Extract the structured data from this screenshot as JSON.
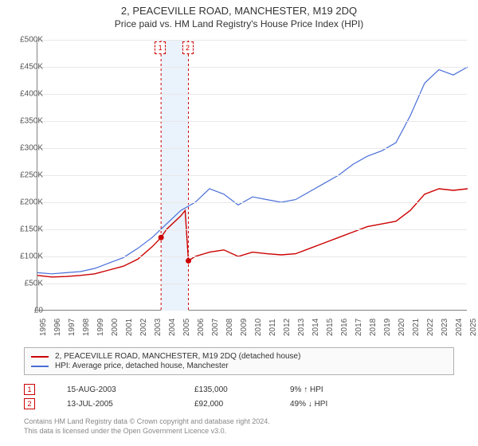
{
  "title": "2, PEACEVILLE ROAD, MANCHESTER, M19 2DQ",
  "subtitle": "Price paid vs. HM Land Registry's House Price Index (HPI)",
  "chart": {
    "type": "line",
    "background_color": "#ffffff",
    "grid_color": "#e8e8e8",
    "axis_color": "#808080",
    "ylim": [
      0,
      500000
    ],
    "ytick_step": 50000,
    "ylabel_prefix": "£",
    "ylabel_suffix": "K",
    "xlim": [
      1995,
      2025
    ],
    "xtick_step": 1,
    "label_fontsize": 10,
    "label_color": "#555555",
    "series": [
      {
        "name": "subject",
        "color": "#cc0000",
        "line_width": 1.4,
        "points": [
          [
            1995,
            65000
          ],
          [
            1996,
            62000
          ],
          [
            1997,
            63000
          ],
          [
            1998,
            65000
          ],
          [
            1999,
            68000
          ],
          [
            2000,
            75000
          ],
          [
            2001,
            82000
          ],
          [
            2002,
            95000
          ],
          [
            2003,
            118000
          ],
          [
            2003.62,
            135000
          ],
          [
            2004,
            150000
          ],
          [
            2005,
            175000
          ],
          [
            2005.3,
            185000
          ],
          [
            2005.53,
            92000
          ],
          [
            2006,
            100000
          ],
          [
            2007,
            108000
          ],
          [
            2008,
            112000
          ],
          [
            2009,
            100000
          ],
          [
            2010,
            108000
          ],
          [
            2011,
            105000
          ],
          [
            2012,
            103000
          ],
          [
            2013,
            105000
          ],
          [
            2014,
            115000
          ],
          [
            2015,
            125000
          ],
          [
            2016,
            135000
          ],
          [
            2017,
            145000
          ],
          [
            2018,
            155000
          ],
          [
            2019,
            160000
          ],
          [
            2020,
            165000
          ],
          [
            2021,
            185000
          ],
          [
            2022,
            215000
          ],
          [
            2023,
            225000
          ],
          [
            2024,
            222000
          ],
          [
            2025,
            225000
          ]
        ]
      },
      {
        "name": "hpi",
        "color": "#4a6fd8",
        "line_width": 1.2,
        "points": [
          [
            1995,
            70000
          ],
          [
            1996,
            68000
          ],
          [
            1997,
            70000
          ],
          [
            1998,
            72000
          ],
          [
            1999,
            78000
          ],
          [
            2000,
            88000
          ],
          [
            2001,
            98000
          ],
          [
            2002,
            115000
          ],
          [
            2003,
            135000
          ],
          [
            2004,
            160000
          ],
          [
            2005,
            185000
          ],
          [
            2006,
            200000
          ],
          [
            2007,
            225000
          ],
          [
            2008,
            215000
          ],
          [
            2009,
            195000
          ],
          [
            2010,
            210000
          ],
          [
            2011,
            205000
          ],
          [
            2012,
            200000
          ],
          [
            2013,
            205000
          ],
          [
            2014,
            220000
          ],
          [
            2015,
            235000
          ],
          [
            2016,
            250000
          ],
          [
            2017,
            270000
          ],
          [
            2018,
            285000
          ],
          [
            2019,
            295000
          ],
          [
            2020,
            310000
          ],
          [
            2021,
            360000
          ],
          [
            2022,
            420000
          ],
          [
            2023,
            445000
          ],
          [
            2024,
            435000
          ],
          [
            2025,
            450000
          ]
        ]
      }
    ],
    "transaction_markers": [
      {
        "index": "1",
        "year": 2003.62,
        "price": 135000,
        "color": "#cc0000"
      },
      {
        "index": "2",
        "year": 2005.53,
        "price": 92000,
        "color": "#cc0000"
      }
    ],
    "highlight_band": {
      "from": 2003.62,
      "to": 2005.53,
      "fill": "#eaf2fb"
    }
  },
  "legend": {
    "border_color": "#b0b0b0",
    "bg_color": "#fafafa",
    "items": [
      {
        "color": "#cc0000",
        "label": "2, PEACEVILLE ROAD, MANCHESTER, M19 2DQ (detached house)"
      },
      {
        "color": "#4a6fd8",
        "label": "HPI: Average price, detached house, Manchester"
      }
    ]
  },
  "transactions": [
    {
      "index": "1",
      "color": "#cc0000",
      "date": "15-AUG-2003",
      "price": "£135,000",
      "delta": "9% ↑ HPI"
    },
    {
      "index": "2",
      "color": "#cc0000",
      "date": "13-JUL-2005",
      "price": "£92,000",
      "delta": "49% ↓ HPI"
    }
  ],
  "footer": {
    "line1": "Contains HM Land Registry data © Crown copyright and database right 2024.",
    "line2": "This data is licensed under the Open Government Licence v3.0."
  }
}
